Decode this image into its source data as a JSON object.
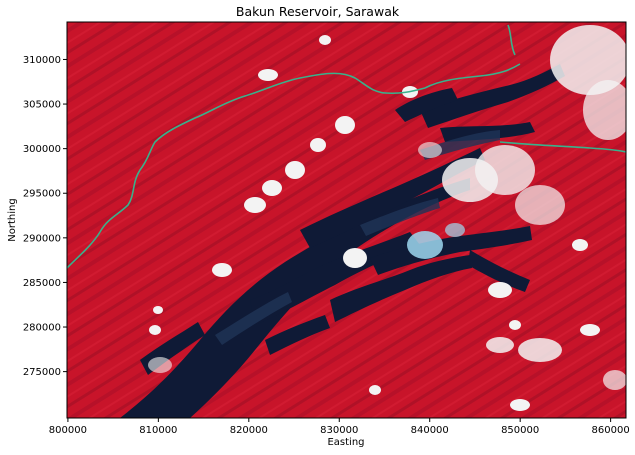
{
  "figure": {
    "title": "Bakun Reservoir, Sarawak"
  },
  "axes": {
    "xlabel": "Easting",
    "ylabel": "Northing",
    "xlim": [
      799900,
      861700
    ],
    "ylim": [
      269800,
      314200
    ],
    "x_ticks": [
      {
        "value": 800000,
        "label": "800000"
      },
      {
        "value": 810000,
        "label": "810000"
      },
      {
        "value": 820000,
        "label": "820000"
      },
      {
        "value": 830000,
        "label": "830000"
      },
      {
        "value": 840000,
        "label": "840000"
      },
      {
        "value": 850000,
        "label": "850000"
      },
      {
        "value": 860000,
        "label": "860000"
      }
    ],
    "y_ticks": [
      {
        "value": 275000,
        "label": "275000"
      },
      {
        "value": 280000,
        "label": "280000"
      },
      {
        "value": 285000,
        "label": "285000"
      },
      {
        "value": 290000,
        "label": "290000"
      },
      {
        "value": 295000,
        "label": "295000"
      },
      {
        "value": 300000,
        "label": "300000"
      },
      {
        "value": 305000,
        "label": "305000"
      },
      {
        "value": 310000,
        "label": "310000"
      }
    ]
  },
  "map": {
    "type": "false-color satellite image",
    "colors": {
      "vegetation": "#c8142a",
      "vegetation_dark": "#8e0f22",
      "water": "#0f1a36",
      "water_light": "#1f3457",
      "cloud": "#f3f3f3",
      "river": "#39b28c"
    }
  }
}
